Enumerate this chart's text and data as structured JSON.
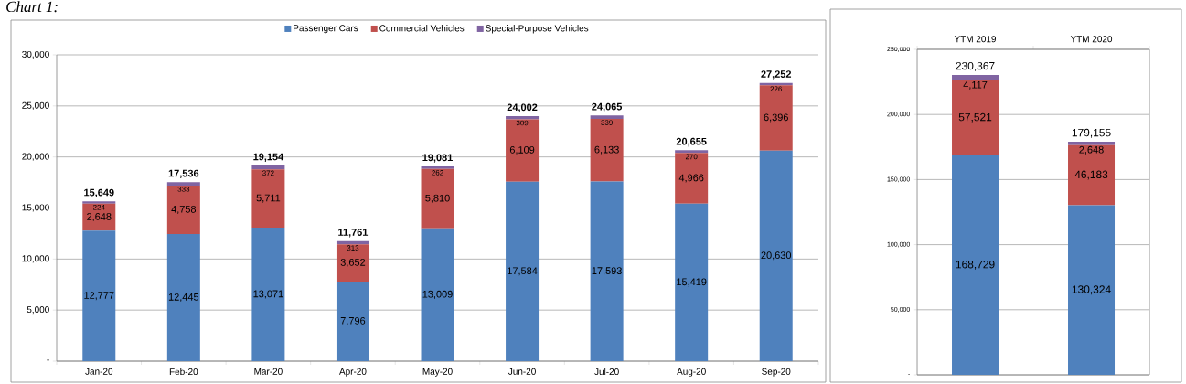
{
  "chart_data": [
    {
      "type": "bar",
      "title": "Chart 1:",
      "stacked": true,
      "grid": "y",
      "legend": "top",
      "categories": [
        "Jan-20",
        "Feb-20",
        "Mar-20",
        "Apr-20",
        "May-20",
        "Jun-20",
        "Jul-20",
        "Aug-20",
        "Sep-20"
      ],
      "series": [
        {
          "name": "Passenger Cars",
          "color": "#4f81bd",
          "values": [
            12777,
            12445,
            13071,
            7796,
            13009,
            17584,
            17593,
            15419,
            20630
          ],
          "value_labels": [
            "12,777",
            "12,445",
            "13,071",
            "7,796",
            "13,009",
            "17,584",
            "17,593",
            "15,419",
            "20,630"
          ]
        },
        {
          "name": "Commercial Vehicles",
          "color": "#c0504d",
          "values": [
            2648,
            4758,
            5711,
            3652,
            5810,
            6109,
            6133,
            4966,
            6396
          ],
          "value_labels": [
            "2,648",
            "4,758",
            "5,711",
            "3,652",
            "5,810",
            "6,109",
            "6,133",
            "4,966",
            "6,396"
          ]
        },
        {
          "name": "Special-Purpose Vehicles",
          "color": "#8064a2",
          "values": [
            224,
            333,
            372,
            313,
            262,
            309,
            339,
            270,
            226
          ],
          "value_labels": [
            "224",
            "333",
            "372",
            "313",
            "262",
            "309",
            "339",
            "270",
            "226"
          ]
        }
      ],
      "totals": [
        "15,649",
        "17,536",
        "19,154",
        "11,761",
        "19,081",
        "24,002",
        "24,065",
        "20,655",
        "27,252"
      ],
      "ylim": [
        0,
        30000
      ],
      "yticks": [
        {
          "value": 0,
          "label": "-"
        },
        {
          "value": 5000,
          "label": "5,000"
        },
        {
          "value": 10000,
          "label": "10,000"
        },
        {
          "value": 15000,
          "label": "15,000"
        },
        {
          "value": 20000,
          "label": "20,000"
        },
        {
          "value": 25000,
          "label": "25,000"
        },
        {
          "value": 30000,
          "label": "30,000"
        }
      ]
    },
    {
      "type": "bar",
      "stacked": true,
      "grid": "y",
      "categories": [
        "YTM 2019",
        "YTM 2020"
      ],
      "series": [
        {
          "color": "#4f81bd",
          "values": [
            168729,
            130324
          ],
          "value_labels": [
            "168,729",
            "130,324"
          ]
        },
        {
          "color": "#c0504d",
          "values": [
            57521,
            46183
          ],
          "value_labels": [
            "57,521",
            "46,183"
          ]
        },
        {
          "color": "#8064a2",
          "values": [
            4117,
            2648
          ],
          "value_labels": [
            "4,117",
            "2,648"
          ]
        }
      ],
      "totals": [
        "230,367",
        "179,155"
      ],
      "ylim": [
        0,
        250000
      ],
      "yticks": [
        {
          "value": 0,
          "label": "-"
        },
        {
          "value": 50000,
          "label": "50,000"
        },
        {
          "value": 100000,
          "label": "100,000"
        },
        {
          "value": 150000,
          "label": "150,000"
        },
        {
          "value": 200000,
          "label": "200,000"
        },
        {
          "value": 250000,
          "label": "250,000"
        }
      ]
    }
  ]
}
